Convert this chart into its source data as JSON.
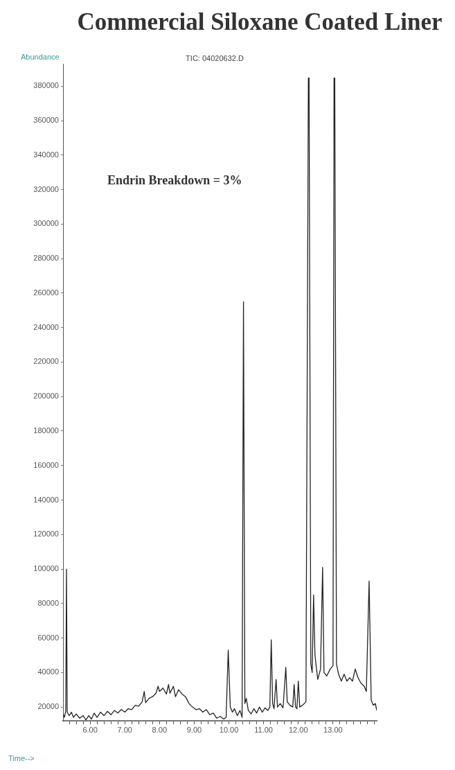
{
  "chart_data": {
    "type": "line",
    "title": "Commercial Siloxane Coated Liner",
    "subtitle": "TIC: 04020632.D",
    "ylabel": "Abundance",
    "xlabel": "Time-->",
    "annotations": [
      "Endrin Breakdown = 3%"
    ],
    "color": "#222222",
    "marker": "none",
    "line_style": "solid",
    "x": [
      5.22,
      5.26,
      5.3,
      5.32,
      5.34,
      5.4,
      5.46,
      5.52,
      5.6,
      5.7,
      5.8,
      5.88,
      5.96,
      6.04,
      6.12,
      6.2,
      6.3,
      6.4,
      6.5,
      6.6,
      6.7,
      6.8,
      6.9,
      7.0,
      7.1,
      7.2,
      7.3,
      7.4,
      7.5,
      7.56,
      7.6,
      7.7,
      7.8,
      7.9,
      7.96,
      8.0,
      8.1,
      8.2,
      8.26,
      8.3,
      8.4,
      8.46,
      8.55,
      8.65,
      8.75,
      8.85,
      8.95,
      9.05,
      9.15,
      9.25,
      9.35,
      9.45,
      9.55,
      9.65,
      9.75,
      9.85,
      9.92,
      9.98,
      10.04,
      10.1,
      10.16,
      10.24,
      10.32,
      10.38,
      10.42,
      10.46,
      10.5,
      10.56,
      10.64,
      10.72,
      10.8,
      10.88,
      10.96,
      11.04,
      11.12,
      11.18,
      11.22,
      11.26,
      11.3,
      11.36,
      11.4,
      11.48,
      11.56,
      11.64,
      11.68,
      11.76,
      11.84,
      11.88,
      11.92,
      11.96,
      12.0,
      12.04,
      12.12,
      12.22,
      12.29,
      12.3,
      12.31,
      12.36,
      12.4,
      12.44,
      12.48,
      12.56,
      12.64,
      12.7,
      12.74,
      12.82,
      12.92,
      13.0,
      13.03,
      13.04,
      13.05,
      13.1,
      13.16,
      13.24,
      13.32,
      13.4,
      13.48,
      13.56,
      13.64,
      13.72,
      13.8,
      13.9,
      13.96,
      14.04,
      14.1,
      14.16,
      14.22,
      14.26
    ],
    "values": [
      16000,
      14000,
      18000,
      100000,
      17000,
      15000,
      17000,
      14000,
      16000,
      13500,
      15000,
      12500,
      15000,
      13000,
      16500,
      14000,
      17000,
      15000,
      17500,
      15500,
      18000,
      16500,
      18500,
      17000,
      19000,
      18500,
      21000,
      20500,
      23000,
      29000,
      22500,
      25000,
      26000,
      28000,
      32000,
      29000,
      31000,
      27500,
      33000,
      28000,
      32000,
      26000,
      30000,
      27500,
      26000,
      22000,
      20000,
      18500,
      19000,
      17000,
      18500,
      15500,
      16500,
      13500,
      14500,
      13000,
      14000,
      53000,
      20000,
      17000,
      19000,
      15000,
      18000,
      14000,
      255000,
      22000,
      25000,
      18000,
      16000,
      19000,
      16500,
      20000,
      17000,
      19500,
      18000,
      20000,
      59000,
      22000,
      19000,
      36000,
      20000,
      22000,
      19500,
      43000,
      23000,
      21000,
      20000,
      33000,
      20000,
      19000,
      35000,
      20000,
      21000,
      23000,
      385000,
      null,
      385000,
      45000,
      40000,
      85000,
      50000,
      36000,
      42000,
      101000,
      40000,
      38000,
      42000,
      44000,
      385000,
      null,
      385000,
      45000,
      39000,
      35000,
      39000,
      35000,
      37000,
      35000,
      42000,
      37000,
      34000,
      32000,
      29000,
      93000,
      24000,
      21000,
      22000,
      18000
    ],
    "xlim": [
      5.22,
      14.26
    ],
    "ylim": [
      12000,
      393000
    ],
    "xticks": [
      {
        "value": 5.4,
        "label": null
      },
      {
        "value": 5.6,
        "label": null
      },
      {
        "value": 5.8,
        "label": null
      },
      {
        "value": 6,
        "label": "6.00"
      },
      {
        "value": 6.2,
        "label": null
      },
      {
        "value": 6.4,
        "label": null
      },
      {
        "value": 6.6,
        "label": null
      },
      {
        "value": 6.8,
        "label": null
      },
      {
        "value": 7,
        "label": "7.00"
      },
      {
        "value": 7.2,
        "label": null
      },
      {
        "value": 7.4,
        "label": null
      },
      {
        "value": 7.6,
        "label": null
      },
      {
        "value": 7.8,
        "label": null
      },
      {
        "value": 8,
        "label": "8.00"
      },
      {
        "value": 8.2,
        "label": null
      },
      {
        "value": 8.4,
        "label": null
      },
      {
        "value": 8.6,
        "label": null
      },
      {
        "value": 8.8,
        "label": null
      },
      {
        "value": 9,
        "label": "9.00"
      },
      {
        "value": 9.2,
        "label": null
      },
      {
        "value": 9.4,
        "label": null
      },
      {
        "value": 9.6,
        "label": null
      },
      {
        "value": 9.8,
        "label": null
      },
      {
        "value": 10,
        "label": "10.00"
      },
      {
        "value": 10.2,
        "label": null
      },
      {
        "value": 10.4,
        "label": null
      },
      {
        "value": 10.6,
        "label": null
      },
      {
        "value": 10.8,
        "label": null
      },
      {
        "value": 11,
        "label": "11.00"
      },
      {
        "value": 11.2,
        "label": null
      },
      {
        "value": 11.4,
        "label": null
      },
      {
        "value": 11.6,
        "label": null
      },
      {
        "value": 11.8,
        "label": null
      },
      {
        "value": 12,
        "label": "12.00"
      },
      {
        "value": 12.2,
        "label": null
      },
      {
        "value": 12.4,
        "label": null
      },
      {
        "value": 12.6,
        "label": null
      },
      {
        "value": 12.8,
        "label": null
      },
      {
        "value": 13,
        "label": "13.00"
      },
      {
        "value": 13.2,
        "label": null
      },
      {
        "value": 13.4,
        "label": null
      },
      {
        "value": 13.6,
        "label": null
      },
      {
        "value": 13.8,
        "label": null
      },
      {
        "value": 14,
        "label": null
      },
      {
        "value": 14.2,
        "label": null
      }
    ],
    "yticks": [
      20000,
      40000,
      60000,
      80000,
      100000,
      120000,
      140000,
      160000,
      180000,
      200000,
      220000,
      240000,
      260000,
      280000,
      300000,
      320000,
      340000,
      360000,
      380000
    ]
  }
}
